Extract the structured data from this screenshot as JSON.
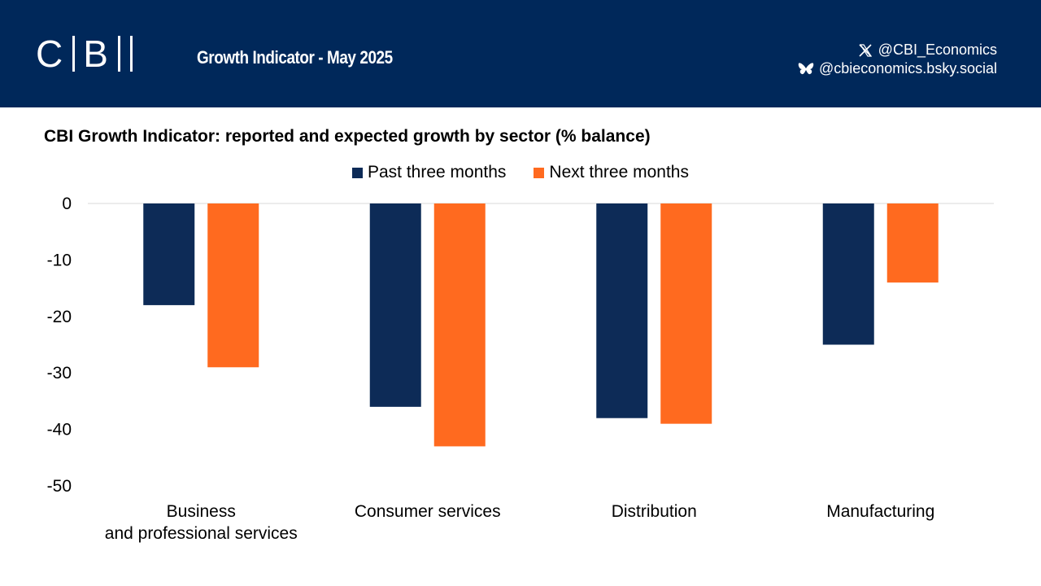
{
  "header": {
    "logo_text": "CBI",
    "report_title": "Growth Indicator - May 2025",
    "social": [
      {
        "icon": "x-logo-icon",
        "handle": "@CBI_Economics"
      },
      {
        "icon": "bluesky-butterfly-icon",
        "handle": "@cbieconomics.bsky.social"
      }
    ]
  },
  "colors": {
    "header_bg": "#00285a",
    "past": "#0d2b57",
    "next": "#ff6a1f"
  },
  "chart_data": {
    "type": "bar",
    "title": "CBI Growth Indicator: reported and expected growth by sector (% balance)",
    "categories": [
      "Business and professional services",
      "Consumer services",
      "Distribution",
      "Manufacturing"
    ],
    "series": [
      {
        "name": "Past three months",
        "values": [
          -18,
          -36,
          -38,
          -25
        ]
      },
      {
        "name": "Next three months",
        "values": [
          -29,
          -43,
          -39,
          -14
        ]
      }
    ],
    "ylim": [
      -50,
      0
    ],
    "yticks": [
      0,
      -10,
      -20,
      -30,
      -40,
      -50
    ],
    "xlabel": "",
    "ylabel": "",
    "legend": "top-center",
    "grid": false
  }
}
